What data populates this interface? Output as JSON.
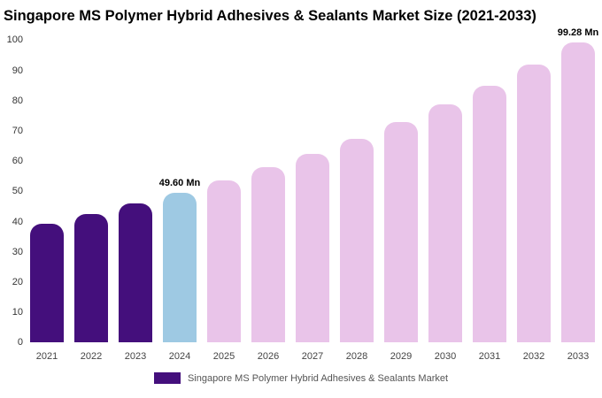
{
  "chart_data": {
    "type": "bar",
    "title": "Singapore MS Polymer Hybrid Adhesives & Sealants Market Size (2021-2033)",
    "categories": [
      "2021",
      "2022",
      "2023",
      "2024",
      "2025",
      "2026",
      "2027",
      "2028",
      "2029",
      "2030",
      "2031",
      "2032",
      "2033"
    ],
    "values": [
      39.4,
      42.5,
      45.9,
      49.6,
      53.6,
      57.9,
      62.5,
      67.5,
      72.9,
      78.7,
      85.0,
      91.9,
      99.28
    ],
    "xlabel": "",
    "ylabel": "",
    "ylim": [
      0,
      100
    ],
    "ytick_step": 10,
    "grid": false,
    "bar_colors": [
      "#440f7c",
      "#440f7c",
      "#440f7c",
      "#9ec9e3",
      "#e9c4e9",
      "#e9c4e9",
      "#e9c4e9",
      "#e9c4e9",
      "#e9c4e9",
      "#e9c4e9",
      "#e9c4e9",
      "#e9c4e9",
      "#e9c4e9"
    ],
    "annotations": [
      {
        "category": "2024",
        "text": "49.60 Mn"
      },
      {
        "category": "2033",
        "text": "99.28 Mn"
      }
    ],
    "legend": {
      "position": "bottom",
      "label": "Singapore MS Polymer Hybrid Adhesives & Sealants Market",
      "swatch_color": "#440f7c"
    }
  }
}
